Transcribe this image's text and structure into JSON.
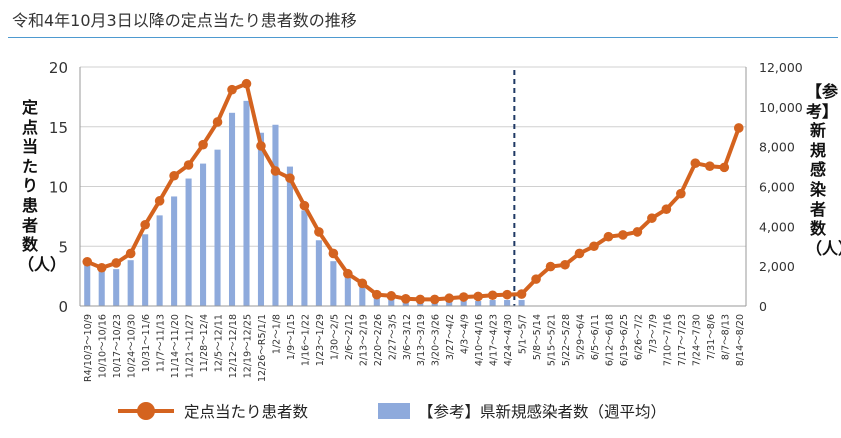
{
  "page": {
    "title": "令和4年10月3日以降の定点当たり患者数の推移"
  },
  "colors": {
    "line": "#d4631f",
    "bars": "#8eaadc",
    "gridline": "#d0d0d0",
    "divider": "#1f3864",
    "title_rule": "#4e9ad0"
  },
  "chart_data": {
    "type": "bar+line",
    "left_axis_label": "定点当たり患者数（人）",
    "right_axis_label": "【参考】新規感染者数（人）",
    "y_left": {
      "min": 0,
      "max": 20,
      "ticks": [
        "0",
        "5",
        "10",
        "15",
        "20"
      ]
    },
    "y_right": {
      "min": 0,
      "max": 12000,
      "ticks": [
        "0",
        "2,000",
        "4,000",
        "6,000",
        "8,000",
        "10,000",
        "12,000"
      ]
    },
    "grid": true,
    "divider_after_category": "4/24～4/30",
    "categories": [
      "R4/10/3～10/9",
      "10/10～10/16",
      "10/17～10/23",
      "10/24～10/30",
      "10/31～11/6",
      "11/7～11/13",
      "11/14～11/20",
      "11/21～11/27",
      "11/28～12/4",
      "12/5～12/11",
      "12/12～12/18",
      "12/19～12/25",
      "12/26～R5/1/1",
      "1/2～1/8",
      "1/9～1/15",
      "1/16～1/22",
      "1/23～1/29",
      "1/30～2/5",
      "2/6～2/12",
      "2/13～2/19",
      "2/20～2/26",
      "2/27～3/5",
      "3/6～3/12",
      "3/13～3/19",
      "3/20～3/26",
      "3/27～4/2",
      "4/3～4/9",
      "4/10～4/16",
      "4/17～4/23",
      "4/24～4/30",
      "5/1～5/7",
      "5/8～5/14",
      "5/15～5/21",
      "5/22～5/28",
      "5/29～6/4",
      "6/5～6/11",
      "6/12～6/18",
      "6/19～6/25",
      "6/26～7/2",
      "7/3～7/9",
      "7/10～7/16",
      "7/17～7/23",
      "7/24～7/30",
      "7/31～8/6",
      "8/7～8/13",
      "8/14～8/20"
    ],
    "series": [
      {
        "name": "定点当たり患者数",
        "kind": "line",
        "axis": "left",
        "values": [
          3.7,
          3.2,
          3.6,
          4.4,
          6.8,
          8.8,
          10.9,
          11.8,
          13.5,
          15.4,
          18.1,
          18.6,
          13.4,
          11.3,
          10.7,
          8.4,
          6.2,
          4.4,
          2.7,
          1.9,
          0.95,
          0.85,
          0.6,
          0.55,
          0.55,
          0.65,
          0.75,
          0.8,
          0.9,
          0.95,
          1.0,
          2.25,
          3.3,
          3.45,
          4.4,
          5.0,
          5.8,
          5.95,
          6.2,
          7.35,
          8.1,
          9.4,
          11.95,
          11.7,
          11.6,
          14.9
        ]
      },
      {
        "name": "【参考】県新規感染者数（週平均）",
        "kind": "bar",
        "axis": "right",
        "values": [
          2050,
          1750,
          1850,
          2300,
          3600,
          4550,
          5500,
          6400,
          7150,
          7850,
          9700,
          10300,
          8700,
          9100,
          7000,
          4800,
          3300,
          2250,
          1450,
          1000,
          500,
          450,
          300,
          200,
          200,
          200,
          250,
          250,
          300,
          300,
          300,
          null,
          null,
          null,
          null,
          null,
          null,
          null,
          null,
          null,
          null,
          null,
          null,
          null,
          null,
          null
        ]
      }
    ]
  }
}
